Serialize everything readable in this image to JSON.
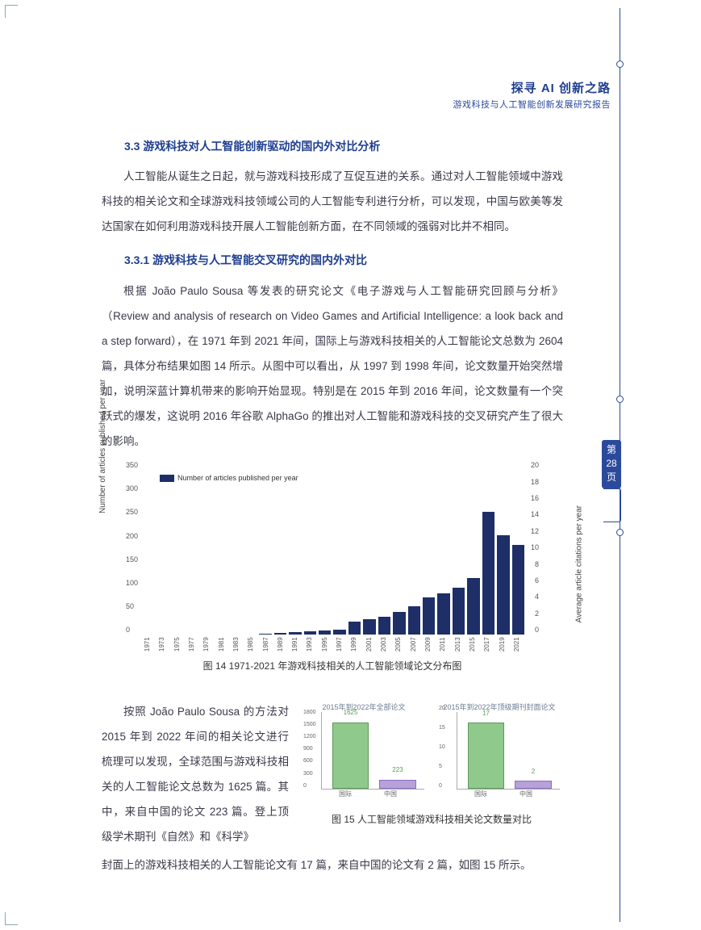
{
  "header": {
    "title": "探寻 AI 创新之路",
    "subtitle": "游戏科技与人工智能创新发展研究报告"
  },
  "page_tab": {
    "char_top": "第",
    "num": "28",
    "char_bot": "页"
  },
  "sections": {
    "h33": "3.3 游戏科技对人工智能创新驱动的国内外对比分析",
    "p1": "人工智能从诞生之日起，就与游戏科技形成了互促互进的关系。通过对人工智能领域中游戏科技的相关论文和全球游戏科技领域公司的人工智能专利进行分析，可以发现，中国与欧美等发达国家在如何利用游戏科技开展人工智能创新方面，在不同领域的强弱对比并不相同。",
    "h331": "3.3.1 游戏科技与人工智能交叉研究的国内外对比",
    "p2": "根据 João Paulo Sousa 等发表的研究论文《电子游戏与人工智能研究回顾与分析》（Review and analysis of research on Video Games and Artificial Intelligence: a look back and a step forward），在 1971 年到 2021 年间，国际上与游戏科技相关的人工智能论文总数为 2604 篇，具体分布结果如图 14 所示。从图中可以看出，从 1997 到 1998 年间，论文数量开始突然增加，说明深蓝计算机带来的影响开始显现。特别是在 2015 年到 2016 年间，论文数量有一个突跃式的爆发，这说明 2016 年谷歌 AlphaGo 的推出对人工智能和游戏科技的交叉研究产生了很大的影响。",
    "p3a": "按照 João Paulo Sousa 的方法对 2015 年到 2022 年间的相关论文进行梳理可以发现，全球范围与游戏科技相关的人工智能论文总数为 1625 篇。其中，来自中国的论文 223 篇。登上顶级学术期刊《自然》和《科学》",
    "p3b": "封面上的游戏科技相关的人工智能论文有 17 篇，来自中国的论文有 2 篇，如图 15 所示。"
  },
  "chart14": {
    "type": "bar",
    "legend": "Number of articles published  per year",
    "ylabel_left": "Number of articles published per year",
    "ylabel_right": "Average article citations per year",
    "y_left_max": 350,
    "y_left_ticks": [
      0,
      50,
      100,
      150,
      200,
      250,
      300,
      350
    ],
    "y_right_max": 20,
    "y_right_ticks": [
      0,
      2,
      4,
      6,
      8,
      10,
      12,
      14,
      16,
      18,
      20
    ],
    "years": [
      1971,
      1973,
      1975,
      1977,
      1979,
      1981,
      1983,
      1985,
      1987,
      1989,
      1991,
      1993,
      1995,
      1997,
      1999,
      2001,
      2003,
      2005,
      2007,
      2009,
      2011,
      2013,
      2015,
      2017,
      2019,
      2021
    ],
    "values": [
      0,
      0,
      0,
      0,
      0,
      0,
      0,
      0,
      2,
      4,
      5,
      6,
      8,
      10,
      28,
      32,
      38,
      48,
      60,
      78,
      88,
      100,
      120,
      260,
      210,
      190
    ],
    "bar_color": "#1d2f66",
    "background": "#ffffff",
    "caption": "图 14 1971-2021 年游戏科技相关的人工智能领域论文分布图"
  },
  "chart15": {
    "caption": "图 15 人工智能领域游戏科技相关论文数量对比",
    "left": {
      "title": "2015年到2022年全部论文",
      "cat": [
        "国际",
        "中国"
      ],
      "vals": [
        1625,
        223
      ],
      "ymax": 1900,
      "yticks": [
        0,
        300,
        600,
        900,
        1200,
        1500,
        1800
      ],
      "colors": [
        "#8fc98c",
        "#b7a1d9"
      ]
    },
    "right": {
      "title": "2015年到2022年顶级期刊封面论文",
      "cat": [
        "国际",
        "中国"
      ],
      "vals": [
        17,
        2
      ],
      "ymax": 20,
      "yticks": [
        0,
        5,
        10,
        15,
        20
      ],
      "colors": [
        "#8fc98c",
        "#b7a1d9"
      ]
    }
  }
}
